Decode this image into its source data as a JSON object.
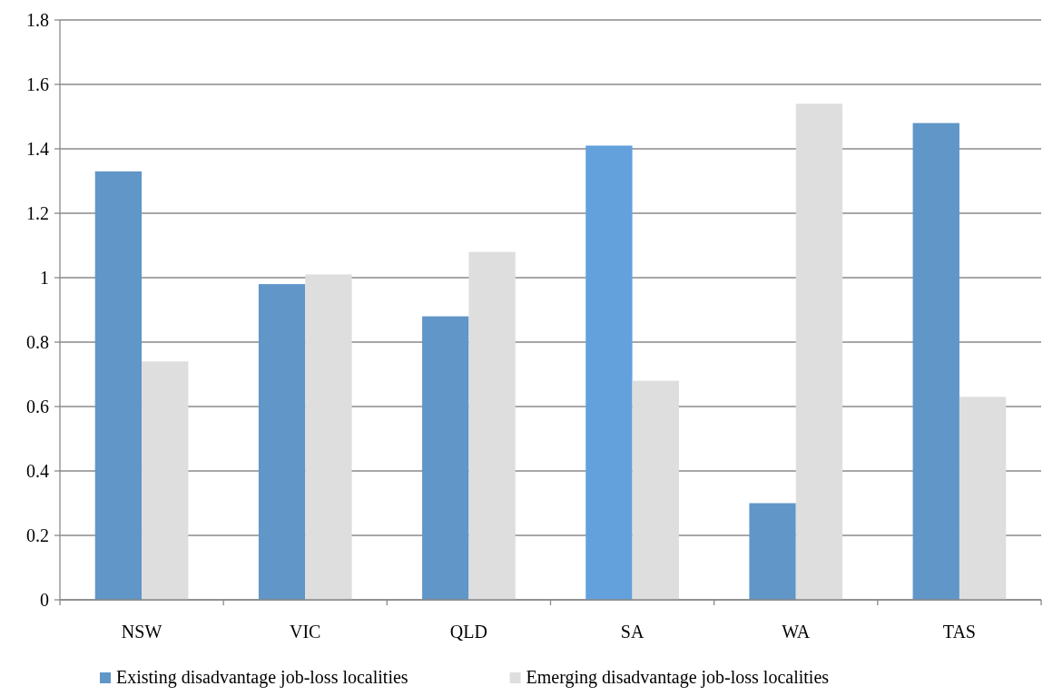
{
  "chart_data": {
    "type": "bar",
    "categories": [
      "NSW",
      "VIC",
      "QLD",
      "SA",
      "WA",
      "TAS"
    ],
    "series": [
      {
        "name": "Existing disadvantage job-loss localities",
        "color": "#6096c8",
        "colors": [
          "#6096c8",
          "#6096c8",
          "#6096c8",
          "#63a1dd",
          "#6096c8",
          "#6096c8"
        ],
        "values": [
          1.33,
          0.98,
          0.88,
          1.41,
          0.3,
          1.48
        ]
      },
      {
        "name": "Emerging disadvantage job-loss localities",
        "color": "#dedede",
        "values": [
          0.74,
          1.01,
          1.08,
          0.68,
          1.54,
          0.63
        ]
      }
    ],
    "ylim": [
      0,
      1.8
    ],
    "yticks": [
      0,
      0.2,
      0.4,
      0.6,
      0.8,
      1,
      1.2,
      1.4,
      1.6,
      1.8
    ],
    "grid": "y",
    "legend": "bottom"
  }
}
